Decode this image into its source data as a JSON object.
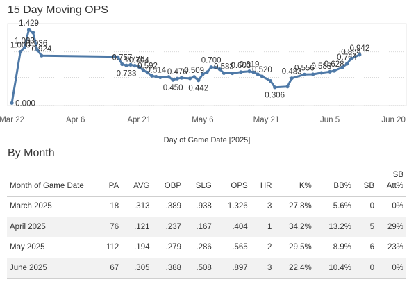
{
  "chart_title": "15 Day Moving OPS",
  "chart_data": {
    "type": "line",
    "title": "15 Day Moving OPS",
    "xlabel": "Day of Game Date [2025]",
    "ylabel": "",
    "x_ticks": [
      "Mar 22",
      "Apr 6",
      "Apr 21",
      "May 6",
      "May 21",
      "Jun 5",
      "Jun 20"
    ],
    "x_tick_days": [
      0,
      15,
      30,
      45,
      60,
      75,
      90
    ],
    "xlim": [
      -1,
      93
    ],
    "ylim": [
      -0.05,
      1.55
    ],
    "grid": "horizontal-dotted",
    "color": "#4e79a7",
    "series": [
      {
        "points": [
          {
            "day": 0,
            "ops": 0.0,
            "label": "0.000"
          },
          {
            "day": 2,
            "ops": 1.0,
            "label": "1.000"
          },
          {
            "day": 3,
            "ops": 1.083,
            "label": "1.083"
          },
          {
            "day": 4,
            "ops": 1.429,
            "label": "1.429"
          },
          {
            "day": 5,
            "ops": 1.375
          },
          {
            "day": 6,
            "ops": 1.036,
            "label": "1.036"
          },
          {
            "day": 7,
            "ops": 0.924,
            "label": "0.924"
          },
          {
            "day": 24,
            "ops": 0.905
          },
          {
            "day": 25,
            "ops": 0.895
          },
          {
            "day": 26,
            "ops": 0.757,
            "label": "0.757"
          },
          {
            "day": 27,
            "ops": 0.733,
            "label": "0.733"
          },
          {
            "day": 28,
            "ops": 0.745
          },
          {
            "day": 29,
            "ops": 0.728,
            "label": "0.728"
          },
          {
            "day": 30,
            "ops": 0.704,
            "label": "0.704"
          },
          {
            "day": 31,
            "ops": 0.64
          },
          {
            "day": 32,
            "ops": 0.592,
            "label": "0.592"
          },
          {
            "day": 33,
            "ops": 0.53
          },
          {
            "day": 34,
            "ops": 0.514,
            "label": "0.514"
          },
          {
            "day": 35,
            "ops": 0.5
          },
          {
            "day": 37,
            "ops": 0.51
          },
          {
            "day": 38,
            "ops": 0.45,
            "label": "0.450"
          },
          {
            "day": 39,
            "ops": 0.476,
            "label": "0.476"
          },
          {
            "day": 40,
            "ops": 0.49
          },
          {
            "day": 42,
            "ops": 0.48
          },
          {
            "day": 43,
            "ops": 0.509,
            "label": "0.509"
          },
          {
            "day": 44,
            "ops": 0.442,
            "label": "0.442"
          },
          {
            "day": 45,
            "ops": 0.56
          },
          {
            "day": 46,
            "ops": 0.6
          },
          {
            "day": 47,
            "ops": 0.7,
            "label": "0.700"
          },
          {
            "day": 48,
            "ops": 0.69
          },
          {
            "day": 49,
            "ops": 0.66
          },
          {
            "day": 50,
            "ops": 0.583,
            "label": "0.583"
          },
          {
            "day": 52,
            "ops": 0.58
          },
          {
            "day": 54,
            "ops": 0.603,
            "label": "0.603"
          },
          {
            "day": 56,
            "ops": 0.619,
            "label": "0.619"
          },
          {
            "day": 57,
            "ops": 0.6
          },
          {
            "day": 58,
            "ops": 0.56
          },
          {
            "day": 59,
            "ops": 0.52,
            "label": "0.520"
          },
          {
            "day": 61,
            "ops": 0.43
          },
          {
            "day": 62,
            "ops": 0.306,
            "label": "0.306"
          },
          {
            "day": 65,
            "ops": 0.32
          },
          {
            "day": 66,
            "ops": 0.483,
            "label": "0.483"
          },
          {
            "day": 69,
            "ops": 0.556,
            "label": "0.556"
          },
          {
            "day": 71,
            "ops": 0.56
          },
          {
            "day": 73,
            "ops": 0.588,
            "label": "0.588"
          },
          {
            "day": 75,
            "ops": 0.61
          },
          {
            "day": 76,
            "ops": 0.628,
            "label": "0.628"
          },
          {
            "day": 78,
            "ops": 0.7
          },
          {
            "day": 79,
            "ops": 0.764,
            "label": "0.764"
          },
          {
            "day": 80,
            "ops": 0.864,
            "label": "0.864"
          },
          {
            "day": 82,
            "ops": 0.942,
            "label": "0.942"
          }
        ]
      }
    ]
  },
  "by_month": {
    "title": "By Month",
    "headers": [
      "Month of Game Date",
      "PA",
      "AVG",
      "OBP",
      "SLG",
      "OPS",
      "HR",
      "K%",
      "BB%",
      "SB",
      "SB Att%"
    ],
    "rows": [
      [
        "March 2025",
        "18",
        ".313",
        ".389",
        ".938",
        "1.326",
        "3",
        "27.8%",
        "5.6%",
        "0",
        "0%"
      ],
      [
        "April 2025",
        "76",
        ".121",
        ".237",
        ".167",
        ".404",
        "1",
        "34.2%",
        "13.2%",
        "5",
        "29%"
      ],
      [
        "May 2025",
        "112",
        ".194",
        ".279",
        ".286",
        ".565",
        "2",
        "29.5%",
        "8.9%",
        "6",
        "23%"
      ],
      [
        "June 2025",
        "67",
        ".305",
        ".388",
        ".508",
        ".897",
        "3",
        "22.4%",
        "10.4%",
        "0",
        "0%"
      ]
    ]
  }
}
